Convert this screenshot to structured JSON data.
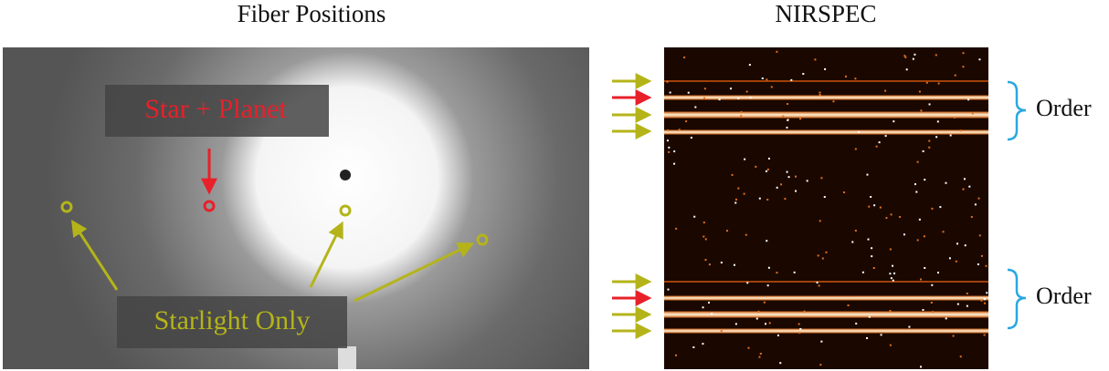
{
  "left_panel": {
    "title": "Fiber Positions",
    "star_label": "Star + Planet",
    "starlight_label": "Starlight Only"
  },
  "right_panel": {
    "title": "NIRSPEC",
    "order_labels": [
      "Order",
      "Order"
    ]
  }
}
